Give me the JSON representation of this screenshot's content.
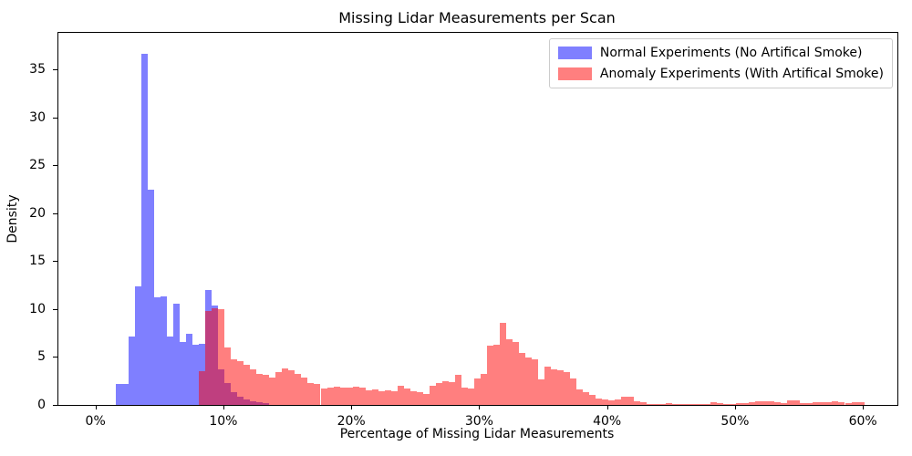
{
  "header": {
    "title": "Missing Lidar Measurements per Scan"
  },
  "axes": {
    "xlabel": "Percentage of Missing Lidar Measurements",
    "ylabel": "Density",
    "x_ticks": [
      {
        "value": 0,
        "label": "0%"
      },
      {
        "value": 10,
        "label": "10%"
      },
      {
        "value": 20,
        "label": "20%"
      },
      {
        "value": 30,
        "label": "30%"
      },
      {
        "value": 40,
        "label": "40%"
      },
      {
        "value": 50,
        "label": "50%"
      },
      {
        "value": 60,
        "label": "60%"
      }
    ],
    "y_ticks": [
      {
        "value": 0,
        "label": "0"
      },
      {
        "value": 5,
        "label": "5"
      },
      {
        "value": 10,
        "label": "10"
      },
      {
        "value": 15,
        "label": "15"
      },
      {
        "value": 20,
        "label": "20"
      },
      {
        "value": 25,
        "label": "25"
      },
      {
        "value": 30,
        "label": "30"
      },
      {
        "value": 35,
        "label": "35"
      }
    ]
  },
  "legend": {
    "items": [
      {
        "label": "Normal Experiments (No Artifical Smoke)",
        "swatch_color": "#7f7fff"
      },
      {
        "label": "Anomaly Experiments (With Artifical Smoke)",
        "swatch_color": "#ff7f7f"
      }
    ]
  },
  "colors": {
    "normal_fill": "rgba(0,0,255,0.5)",
    "anomaly_fill": "rgba(255,0,0,0.5)",
    "overlap_seen": "#bf3f7f",
    "axis": "#000000",
    "legend_border": "#cccccc"
  },
  "chart_data": {
    "type": "bar",
    "subtype": "overlaid-histograms",
    "title": "Missing Lidar Measurements per Scan",
    "xlabel": "Percentage of Missing Lidar Measurements",
    "ylabel": "Density",
    "xlim": [
      -2.9,
      62.7
    ],
    "ylim": [
      0,
      38.8
    ],
    "grid": false,
    "legend_position": "upper right",
    "x_unit": "percent",
    "series": [
      {
        "id": "normal",
        "name": "Normal Experiments (No Artifical Smoke)",
        "color": "rgba(0,0,255,0.5)",
        "bin_start": 1.6,
        "bin_width": 0.5,
        "densities": [
          2.2,
          2.2,
          7.1,
          12.4,
          36.6,
          22.4,
          11.2,
          11.3,
          7.1,
          10.6,
          6.6,
          7.4,
          6.3,
          6.4,
          12.0,
          10.4,
          3.7,
          2.3,
          1.3,
          0.9,
          0.6,
          0.4,
          0.25,
          0.15
        ]
      },
      {
        "id": "anomaly",
        "name": "Anomaly Experiments (With Artifical Smoke)",
        "color": "rgba(255,0,0,0.5)",
        "bin_start": 8.1,
        "bin_width": 0.5,
        "densities": [
          3.5,
          9.8,
          10.1,
          10.0,
          6.0,
          4.8,
          4.6,
          4.2,
          3.7,
          3.2,
          3.1,
          2.9,
          3.4,
          3.8,
          3.6,
          3.2,
          2.9,
          2.3,
          2.2,
          1.7,
          1.8,
          1.9,
          1.85,
          1.8,
          1.9,
          1.85,
          1.5,
          1.6,
          1.4,
          1.5,
          1.4,
          2.0,
          1.7,
          1.4,
          1.35,
          1.1,
          2.0,
          2.3,
          2.5,
          2.4,
          3.1,
          1.8,
          1.7,
          2.8,
          3.2,
          6.2,
          6.3,
          8.6,
          6.8,
          6.6,
          5.4,
          4.95,
          4.8,
          2.65,
          4.0,
          3.7,
          3.6,
          3.4,
          2.8,
          1.6,
          1.3,
          1.0,
          0.65,
          0.6,
          0.5,
          0.55,
          0.85,
          0.9,
          0.35,
          0.25,
          0.1,
          0.05,
          0.05,
          0.2,
          0.1,
          0.05,
          0.05,
          0.05,
          0.05,
          0.1,
          0.25,
          0.2,
          0.05,
          0.05,
          0.15,
          0.2,
          0.3,
          0.35,
          0.4,
          0.35,
          0.25,
          0.2,
          0.5,
          0.45,
          0.2,
          0.2,
          0.25,
          0.3,
          0.25,
          0.35,
          0.3,
          0.15,
          0.3,
          0.3
        ]
      }
    ]
  }
}
